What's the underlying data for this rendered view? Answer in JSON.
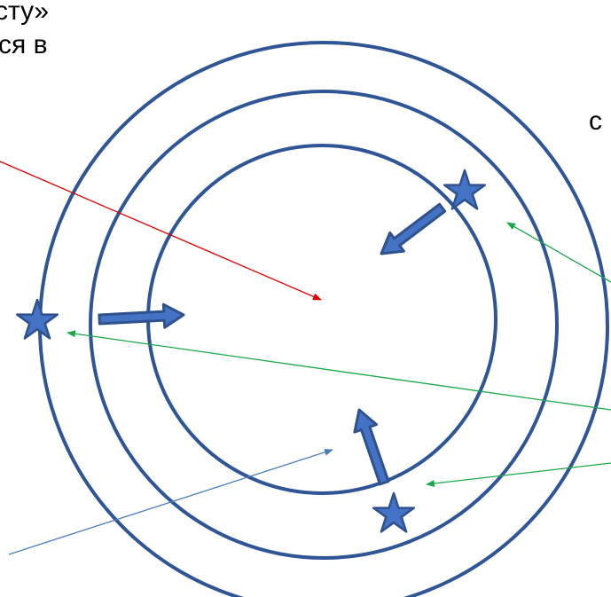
{
  "text_fragments": {
    "line1": "сту»",
    "line2": "ся в",
    "right_char": "с"
  },
  "colors": {
    "circle_stroke": "#2f5597",
    "star_fill": "#4472c4",
    "star_stroke": "#2f528f",
    "pointer_red": "#e00000",
    "pointer_green": "#1aa84a",
    "pointer_blue": "#4a7ebb"
  },
  "elements": {
    "circles": [
      "outer-circle",
      "middle-circle",
      "inner-circle"
    ],
    "stars": 3,
    "thick_arrows": 3,
    "pointer_lines": [
      "red",
      "green",
      "green",
      "green",
      "blue"
    ]
  }
}
